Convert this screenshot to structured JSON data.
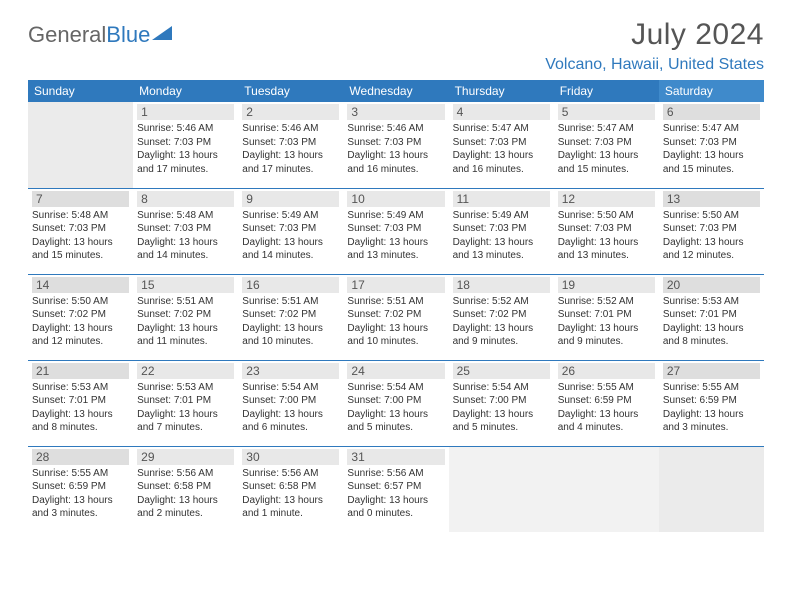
{
  "logo": {
    "part1": "General",
    "part2": "Blue"
  },
  "title": "July 2024",
  "location": "Volcano, Hawaii, United States",
  "days_of_week": [
    "Sunday",
    "Monday",
    "Tuesday",
    "Wednesday",
    "Thursday",
    "Friday",
    "Saturday"
  ],
  "header_bg": "#2f79bd",
  "accent_color": "#2f79bd",
  "start_weekday": 1,
  "days": [
    {
      "n": 1,
      "sunrise": "5:46 AM",
      "sunset": "7:03 PM",
      "daylight": "13 hours and 17 minutes."
    },
    {
      "n": 2,
      "sunrise": "5:46 AM",
      "sunset": "7:03 PM",
      "daylight": "13 hours and 17 minutes."
    },
    {
      "n": 3,
      "sunrise": "5:46 AM",
      "sunset": "7:03 PM",
      "daylight": "13 hours and 16 minutes."
    },
    {
      "n": 4,
      "sunrise": "5:47 AM",
      "sunset": "7:03 PM",
      "daylight": "13 hours and 16 minutes."
    },
    {
      "n": 5,
      "sunrise": "5:47 AM",
      "sunset": "7:03 PM",
      "daylight": "13 hours and 15 minutes."
    },
    {
      "n": 6,
      "sunrise": "5:47 AM",
      "sunset": "7:03 PM",
      "daylight": "13 hours and 15 minutes."
    },
    {
      "n": 7,
      "sunrise": "5:48 AM",
      "sunset": "7:03 PM",
      "daylight": "13 hours and 15 minutes."
    },
    {
      "n": 8,
      "sunrise": "5:48 AM",
      "sunset": "7:03 PM",
      "daylight": "13 hours and 14 minutes."
    },
    {
      "n": 9,
      "sunrise": "5:49 AM",
      "sunset": "7:03 PM",
      "daylight": "13 hours and 14 minutes."
    },
    {
      "n": 10,
      "sunrise": "5:49 AM",
      "sunset": "7:03 PM",
      "daylight": "13 hours and 13 minutes."
    },
    {
      "n": 11,
      "sunrise": "5:49 AM",
      "sunset": "7:03 PM",
      "daylight": "13 hours and 13 minutes."
    },
    {
      "n": 12,
      "sunrise": "5:50 AM",
      "sunset": "7:03 PM",
      "daylight": "13 hours and 13 minutes."
    },
    {
      "n": 13,
      "sunrise": "5:50 AM",
      "sunset": "7:03 PM",
      "daylight": "13 hours and 12 minutes."
    },
    {
      "n": 14,
      "sunrise": "5:50 AM",
      "sunset": "7:02 PM",
      "daylight": "13 hours and 12 minutes."
    },
    {
      "n": 15,
      "sunrise": "5:51 AM",
      "sunset": "7:02 PM",
      "daylight": "13 hours and 11 minutes."
    },
    {
      "n": 16,
      "sunrise": "5:51 AM",
      "sunset": "7:02 PM",
      "daylight": "13 hours and 10 minutes."
    },
    {
      "n": 17,
      "sunrise": "5:51 AM",
      "sunset": "7:02 PM",
      "daylight": "13 hours and 10 minutes."
    },
    {
      "n": 18,
      "sunrise": "5:52 AM",
      "sunset": "7:02 PM",
      "daylight": "13 hours and 9 minutes."
    },
    {
      "n": 19,
      "sunrise": "5:52 AM",
      "sunset": "7:01 PM",
      "daylight": "13 hours and 9 minutes."
    },
    {
      "n": 20,
      "sunrise": "5:53 AM",
      "sunset": "7:01 PM",
      "daylight": "13 hours and 8 minutes."
    },
    {
      "n": 21,
      "sunrise": "5:53 AM",
      "sunset": "7:01 PM",
      "daylight": "13 hours and 8 minutes."
    },
    {
      "n": 22,
      "sunrise": "5:53 AM",
      "sunset": "7:01 PM",
      "daylight": "13 hours and 7 minutes."
    },
    {
      "n": 23,
      "sunrise": "5:54 AM",
      "sunset": "7:00 PM",
      "daylight": "13 hours and 6 minutes."
    },
    {
      "n": 24,
      "sunrise": "5:54 AM",
      "sunset": "7:00 PM",
      "daylight": "13 hours and 5 minutes."
    },
    {
      "n": 25,
      "sunrise": "5:54 AM",
      "sunset": "7:00 PM",
      "daylight": "13 hours and 5 minutes."
    },
    {
      "n": 26,
      "sunrise": "5:55 AM",
      "sunset": "6:59 PM",
      "daylight": "13 hours and 4 minutes."
    },
    {
      "n": 27,
      "sunrise": "5:55 AM",
      "sunset": "6:59 PM",
      "daylight": "13 hours and 3 minutes."
    },
    {
      "n": 28,
      "sunrise": "5:55 AM",
      "sunset": "6:59 PM",
      "daylight": "13 hours and 3 minutes."
    },
    {
      "n": 29,
      "sunrise": "5:56 AM",
      "sunset": "6:58 PM",
      "daylight": "13 hours and 2 minutes."
    },
    {
      "n": 30,
      "sunrise": "5:56 AM",
      "sunset": "6:58 PM",
      "daylight": "13 hours and 1 minute."
    },
    {
      "n": 31,
      "sunrise": "5:56 AM",
      "sunset": "6:57 PM",
      "daylight": "13 hours and 0 minutes."
    }
  ],
  "labels": {
    "sunrise": "Sunrise:",
    "sunset": "Sunset:",
    "daylight": "Daylight:"
  }
}
